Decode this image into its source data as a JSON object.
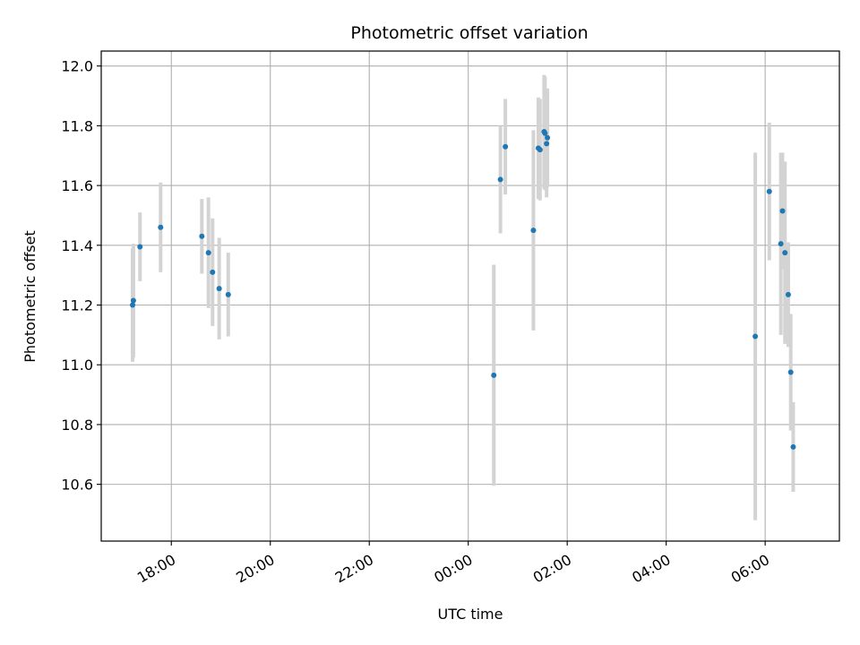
{
  "chart_data": {
    "type": "scatter",
    "title": "Photometric offset variation",
    "xlabel": "UTC time",
    "ylabel": "Photometric offset",
    "x_axis_type": "time",
    "xlim": [
      "16:35",
      "07:30"
    ],
    "ylim": [
      10.41,
      12.05
    ],
    "x_ticks": [
      "18:00",
      "20:00",
      "22:00",
      "00:00",
      "02:00",
      "04:00",
      "06:00"
    ],
    "y_ticks": [
      10.6,
      10.8,
      11.0,
      11.2,
      11.4,
      11.6,
      11.8,
      12.0
    ],
    "grid": true,
    "colors": {
      "marker": "#1f77b4",
      "errorbar": "#d3d3d3",
      "grid": "#b0b0b0"
    },
    "points": [
      {
        "t": "17:13",
        "y": 11.2,
        "err": 0.19
      },
      {
        "t": "17:14",
        "y": 11.215,
        "err": 0.19
      },
      {
        "t": "17:22",
        "y": 11.395,
        "err": 0.115
      },
      {
        "t": "17:47",
        "y": 11.46,
        "err": 0.15
      },
      {
        "t": "18:37",
        "y": 11.43,
        "err": 0.125
      },
      {
        "t": "18:45",
        "y": 11.375,
        "err": 0.185
      },
      {
        "t": "18:50",
        "y": 11.31,
        "err": 0.18
      },
      {
        "t": "18:58",
        "y": 11.255,
        "err": 0.17
      },
      {
        "t": "19:09",
        "y": 11.235,
        "err": 0.14
      },
      {
        "t": "00:31",
        "y": 10.965,
        "err": 0.37
      },
      {
        "t": "00:39",
        "y": 11.62,
        "err": 0.18
      },
      {
        "t": "00:45",
        "y": 11.73,
        "err": 0.16
      },
      {
        "t": "01:19",
        "y": 11.45,
        "err": 0.335
      },
      {
        "t": "01:25",
        "y": 11.725,
        "err": 0.17
      },
      {
        "t": "01:27",
        "y": 11.72,
        "err": 0.17
      },
      {
        "t": "01:32",
        "y": 11.78,
        "err": 0.19
      },
      {
        "t": "01:33",
        "y": 11.775,
        "err": 0.19
      },
      {
        "t": "01:35",
        "y": 11.74,
        "err": 0.18
      },
      {
        "t": "01:36",
        "y": 11.76,
        "err": 0.165
      },
      {
        "t": "05:48",
        "y": 11.095,
        "err": 0.615
      },
      {
        "t": "06:05",
        "y": 11.58,
        "err": 0.23
      },
      {
        "t": "06:19",
        "y": 11.405,
        "err": 0.305
      },
      {
        "t": "06:21",
        "y": 11.515,
        "err": 0.195
      },
      {
        "t": "06:24",
        "y": 11.375,
        "err": 0.305
      },
      {
        "t": "06:28",
        "y": 11.235,
        "err": 0.175
      },
      {
        "t": "06:31",
        "y": 10.975,
        "err": 0.195
      },
      {
        "t": "06:34",
        "y": 10.725,
        "err": 0.15
      }
    ]
  }
}
